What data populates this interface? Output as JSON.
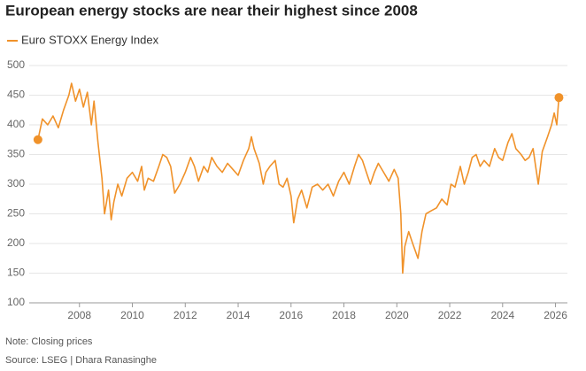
{
  "chart_data": {
    "type": "line",
    "title": "European energy stocks are near their highest since 2008",
    "note": "Note: Closing prices",
    "source": "Source: LSEG | Dhara Ranasinghe",
    "x": [
      2006.43,
      2006.6,
      2006.8,
      2007.0,
      2007.2,
      2007.4,
      2007.6,
      2007.7,
      2007.85,
      2008.0,
      2008.15,
      2008.3,
      2008.45,
      2008.55,
      2008.7,
      2008.85,
      2008.95,
      2009.1,
      2009.2,
      2009.3,
      2009.45,
      2009.6,
      2009.8,
      2010.0,
      2010.2,
      2010.35,
      2010.45,
      2010.6,
      2010.8,
      2011.0,
      2011.15,
      2011.3,
      2011.45,
      2011.6,
      2011.8,
      2012.0,
      2012.2,
      2012.35,
      2012.5,
      2012.7,
      2012.85,
      2013.0,
      2013.2,
      2013.4,
      2013.6,
      2013.8,
      2014.0,
      2014.2,
      2014.4,
      2014.5,
      2014.6,
      2014.8,
      2014.95,
      2015.05,
      2015.2,
      2015.4,
      2015.55,
      2015.7,
      2015.85,
      2016.0,
      2016.1,
      2016.25,
      2016.4,
      2016.6,
      2016.8,
      2017.0,
      2017.2,
      2017.4,
      2017.6,
      2017.8,
      2018.0,
      2018.2,
      2018.4,
      2018.55,
      2018.7,
      2018.85,
      2019.0,
      2019.15,
      2019.3,
      2019.5,
      2019.7,
      2019.9,
      2020.05,
      2020.15,
      2020.22,
      2020.3,
      2020.45,
      2020.6,
      2020.8,
      2020.95,
      2021.1,
      2021.3,
      2021.5,
      2021.7,
      2021.9,
      2022.05,
      2022.2,
      2022.4,
      2022.55,
      2022.7,
      2022.85,
      2023.0,
      2023.15,
      2023.3,
      2023.5,
      2023.7,
      2023.85,
      2024.0,
      2024.2,
      2024.35,
      2024.5,
      2024.7,
      2024.85,
      2025.0,
      2025.15,
      2025.25,
      2025.35,
      2025.5,
      2025.7,
      2025.85,
      2025.95,
      2026.05,
      2026.13
    ],
    "series": [
      {
        "name": "Euro STOXX Energy Index",
        "color": "#f0922a",
        "values": [
          375,
          410,
          400,
          415,
          395,
          425,
          450,
          470,
          440,
          460,
          430,
          455,
          400,
          440,
          370,
          310,
          250,
          290,
          240,
          270,
          300,
          280,
          310,
          320,
          305,
          330,
          290,
          310,
          305,
          330,
          350,
          345,
          330,
          285,
          300,
          320,
          345,
          330,
          305,
          330,
          320,
          345,
          330,
          320,
          335,
          325,
          315,
          340,
          360,
          380,
          360,
          335,
          300,
          320,
          330,
          340,
          300,
          295,
          310,
          280,
          235,
          275,
          290,
          260,
          295,
          300,
          290,
          300,
          280,
          305,
          320,
          300,
          330,
          350,
          340,
          320,
          300,
          320,
          335,
          320,
          305,
          325,
          310,
          250,
          150,
          195,
          220,
          200,
          175,
          220,
          250,
          255,
          260,
          275,
          265,
          300,
          295,
          330,
          300,
          320,
          345,
          350,
          330,
          340,
          330,
          360,
          345,
          340,
          370,
          385,
          360,
          350,
          340,
          345,
          360,
          330,
          300,
          355,
          380,
          400,
          420,
          400,
          446
        ]
      }
    ],
    "xlim": [
      2006.1,
      2026.45
    ],
    "xticks": [
      2008,
      2010,
      2012,
      2014,
      2016,
      2018,
      2020,
      2022,
      2024,
      2026
    ],
    "ylim": [
      100,
      500
    ],
    "yticks": [
      100,
      150,
      200,
      250,
      300,
      350,
      400,
      450,
      500
    ],
    "grid": true,
    "endpoint_markers": true
  }
}
